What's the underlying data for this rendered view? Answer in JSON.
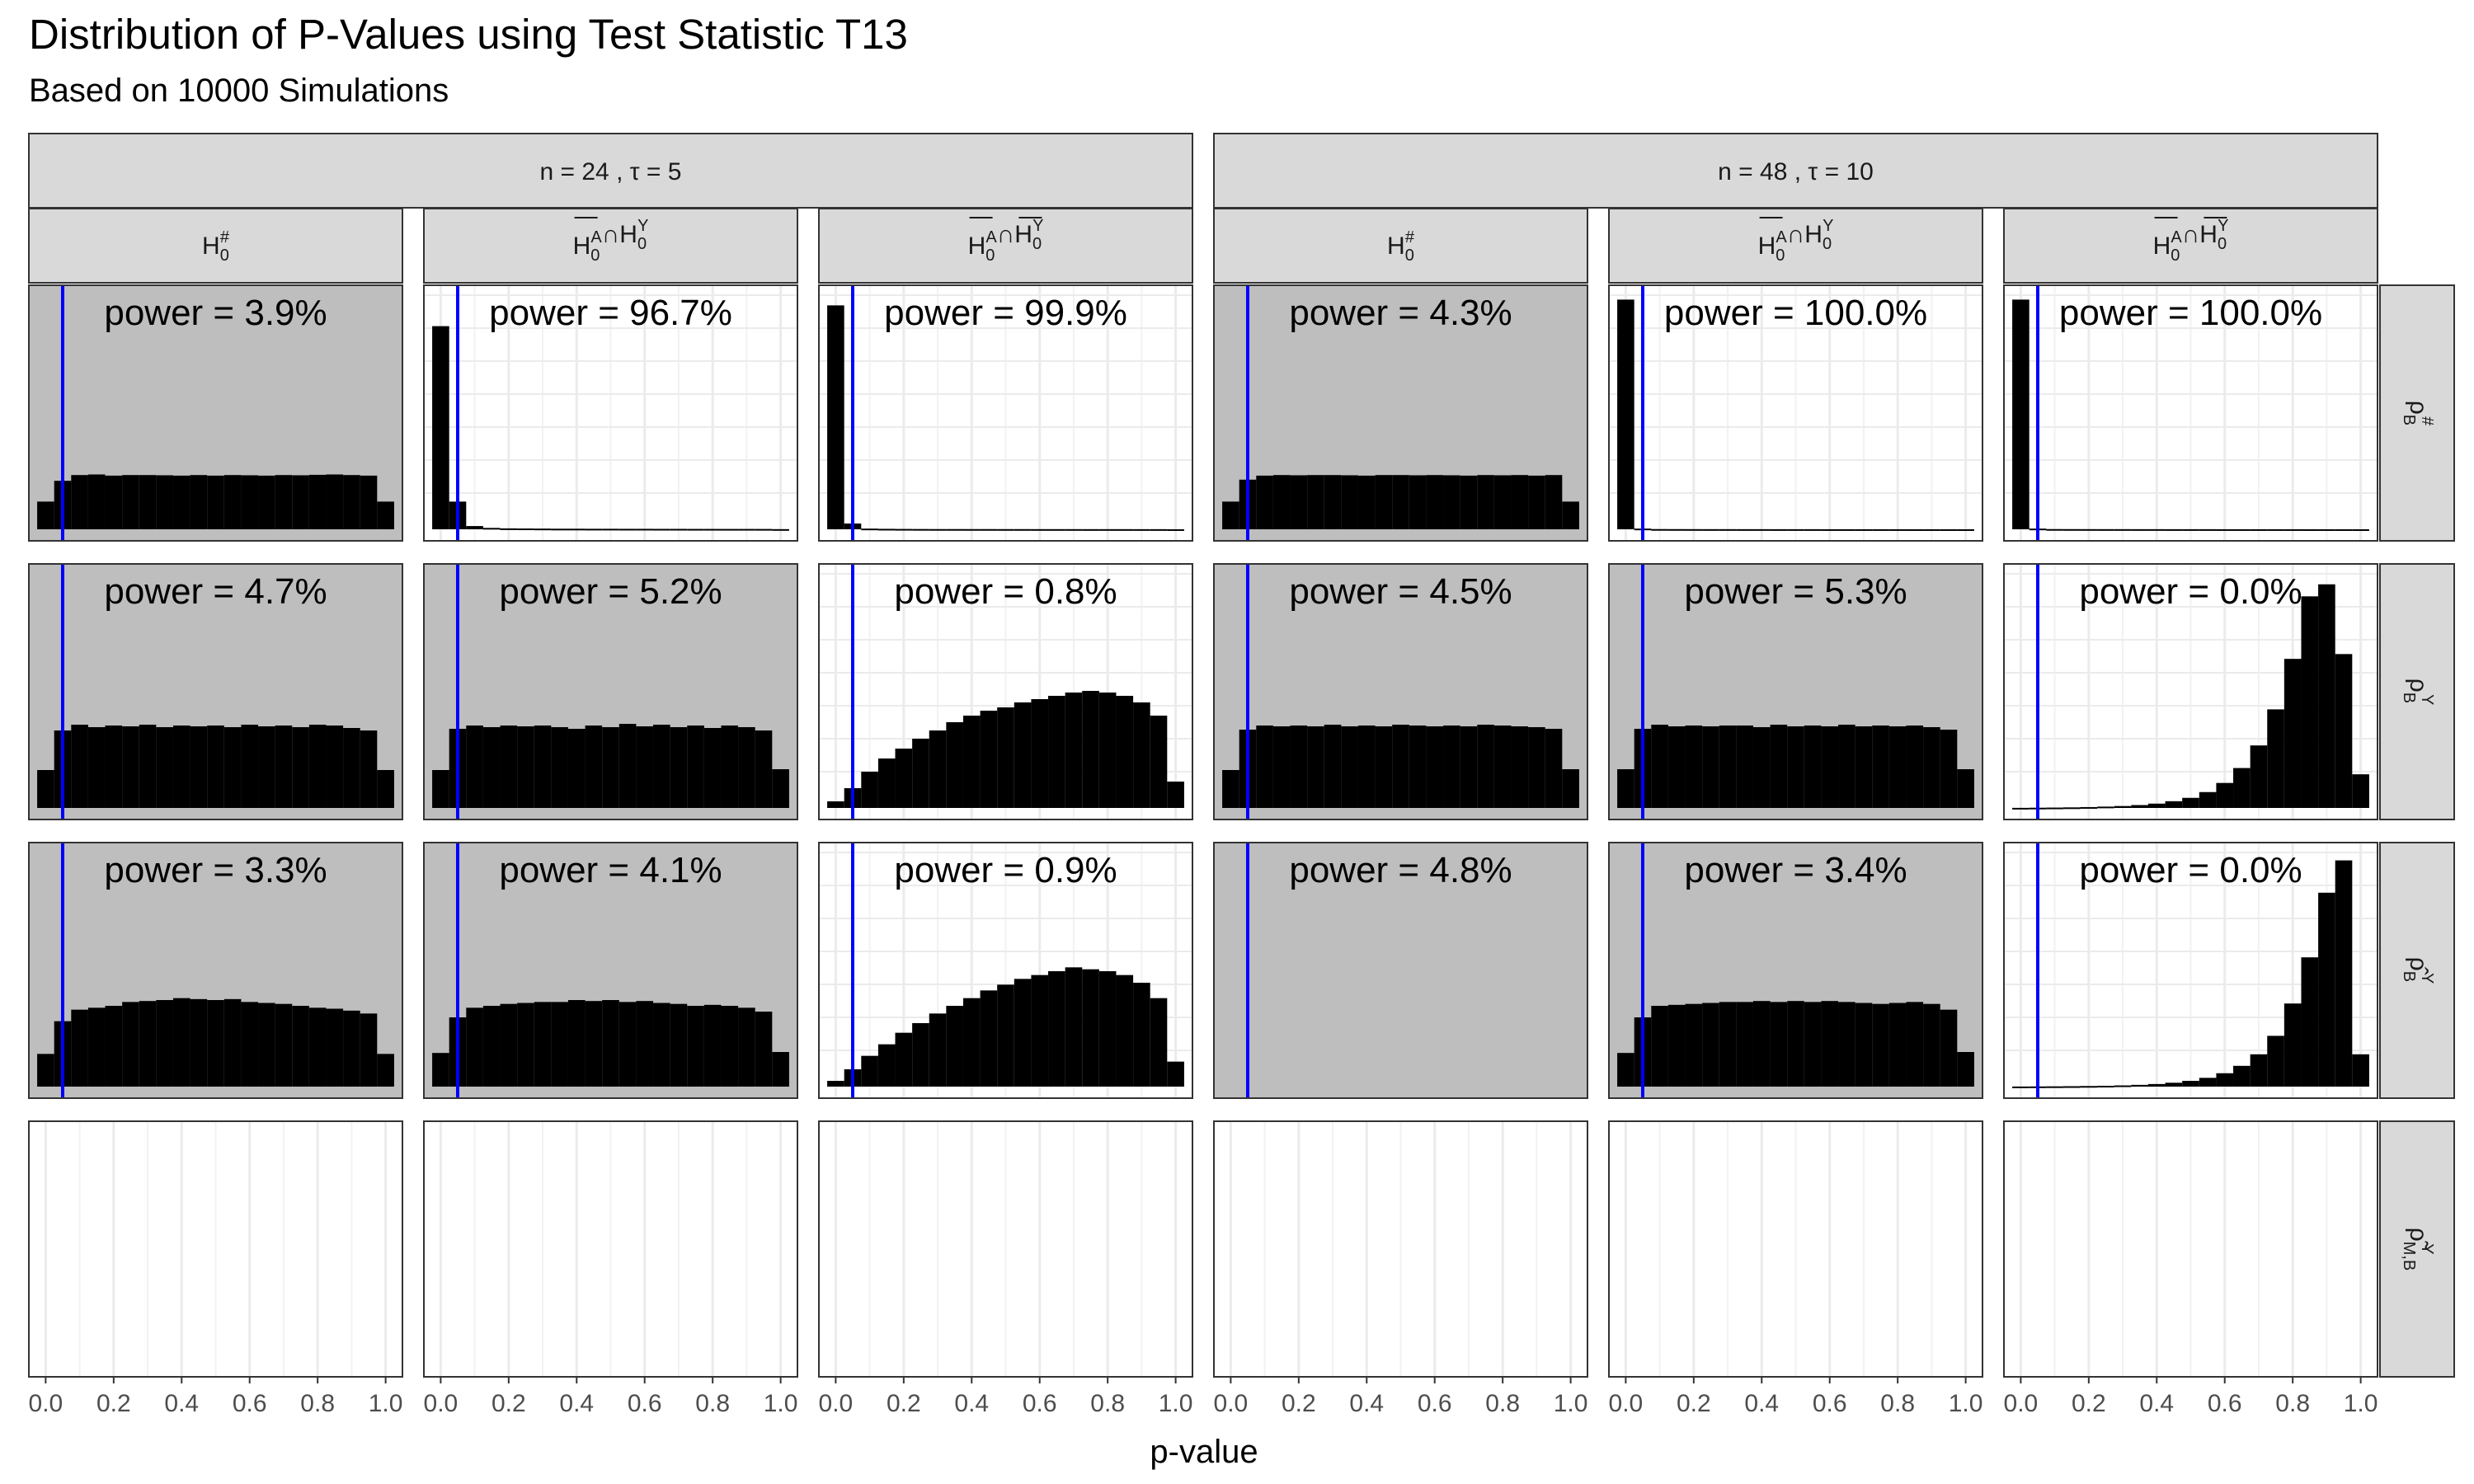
{
  "title": "Distribution of P-Values using Test Statistic T13",
  "subtitle": "Based on 10000 Simulations",
  "chart_data": {
    "type": "histogram-facet-grid",
    "xlabel": "p-value",
    "xlim": [
      0,
      1
    ],
    "x_ticks": [
      "0.0",
      "0.2",
      "0.4",
      "0.6",
      "0.8",
      "1.0"
    ],
    "bins": 21,
    "bin_width": 0.05,
    "bin_centers": [
      0.0,
      0.05,
      0.1,
      0.15,
      0.2,
      0.25,
      0.3,
      0.35,
      0.4,
      0.45,
      0.5,
      0.55,
      0.6,
      0.65,
      0.7,
      0.75,
      0.8,
      0.85,
      0.9,
      0.95,
      1.0
    ],
    "significance_line": 0.05,
    "significance_line_color": "#0000ff",
    "bar_color": "#000000",
    "null_panel_background": "#bebebe",
    "strip_background": "#d9d9d9",
    "column_groups": [
      {
        "label": "n = 24 , τ = 5"
      },
      {
        "label": "n = 48 , τ = 10"
      }
    ],
    "column_hypotheses": [
      "H0#",
      "H̄0A∩H0Y",
      "H̄0A∩H̄0Y"
    ],
    "rows": [
      {
        "label": "ρB#"
      },
      {
        "label": "ρBY"
      },
      {
        "label": "ρ̂BY"
      },
      {
        "label": "ρ̃M,BY"
      }
    ],
    "panels": [
      [
        {
          "power": "power = 3.9%",
          "null": true,
          "ymax": 2000,
          "counts": [
            240,
            420,
            470,
            475,
            465,
            470,
            470,
            468,
            465,
            470,
            465,
            470,
            468,
            465,
            470,
            468,
            472,
            475,
            470,
            465,
            240
          ]
        },
        {
          "power": "power = 96.7%",
          "null": false,
          "ymax": 10000,
          "counts": [
            8800,
            1200,
            140,
            60,
            40,
            35,
            30,
            25,
            25,
            22,
            22,
            20,
            20,
            18,
            18,
            16,
            16,
            15,
            15,
            14,
            7
          ]
        },
        {
          "power": "power = 99.9%",
          "null": false,
          "ymax": 10000,
          "counts": [
            9700,
            250,
            30,
            20,
            15,
            12,
            10,
            10,
            9,
            9,
            8,
            8,
            7,
            7,
            7,
            6,
            6,
            6,
            5,
            5,
            2
          ]
        },
        {
          "power": "power = 4.3%",
          "null": true,
          "ymax": 2000,
          "counts": [
            240,
            430,
            465,
            470,
            468,
            470,
            470,
            468,
            465,
            470,
            470,
            468,
            470,
            468,
            465,
            470,
            468,
            470,
            465,
            470,
            240
          ]
        },
        {
          "power": "power = 100.0%",
          "null": false,
          "ymax": 10000,
          "counts": [
            9950,
            30,
            10,
            8,
            7,
            6,
            6,
            5,
            5,
            4,
            4,
            4,
            3,
            3,
            3,
            3,
            3,
            2,
            2,
            2,
            1
          ]
        },
        {
          "power": "power = 100.0%",
          "null": false,
          "ymax": 10000,
          "counts": [
            9950,
            30,
            10,
            8,
            7,
            6,
            6,
            5,
            5,
            4,
            4,
            4,
            3,
            3,
            3,
            3,
            3,
            2,
            2,
            2,
            1
          ]
        }
      ],
      [
        {
          "power": "power = 4.7%",
          "null": true,
          "ymax": 1400,
          "counts": [
            230,
            470,
            505,
            490,
            500,
            495,
            505,
            490,
            500,
            495,
            500,
            490,
            505,
            495,
            500,
            490,
            505,
            500,
            485,
            470,
            230
          ]
        },
        {
          "power": "power = 5.2%",
          "null": true,
          "ymax": 1400,
          "counts": [
            230,
            480,
            500,
            490,
            500,
            495,
            500,
            490,
            480,
            500,
            490,
            510,
            495,
            505,
            490,
            500,
            485,
            500,
            490,
            470,
            235
          ]
        },
        {
          "power": "power = 0.8%",
          "null": false,
          "ymax": 1400,
          "counts": [
            40,
            120,
            220,
            300,
            360,
            420,
            470,
            520,
            560,
            590,
            610,
            640,
            660,
            680,
            700,
            710,
            700,
            680,
            640,
            560,
            160
          ]
        },
        {
          "power": "power = 4.5%",
          "null": true,
          "ymax": 1400,
          "counts": [
            230,
            475,
            500,
            495,
            500,
            495,
            505,
            495,
            500,
            495,
            505,
            500,
            495,
            500,
            495,
            505,
            500,
            495,
            490,
            480,
            235
          ]
        },
        {
          "power": "power = 5.3%",
          "null": true,
          "ymax": 1400,
          "counts": [
            235,
            480,
            505,
            495,
            500,
            495,
            500,
            500,
            490,
            505,
            495,
            500,
            495,
            505,
            495,
            500,
            495,
            500,
            490,
            475,
            235
          ]
        },
        {
          "power": "power = 0.0%",
          "null": false,
          "ymax": 4800,
          "counts": [
            2,
            5,
            8,
            12,
            18,
            28,
            40,
            60,
            90,
            140,
            210,
            330,
            520,
            830,
            1300,
            2050,
            3100,
            4400,
            4650,
            3200,
            700
          ]
        }
      ],
      [
        {
          "power": "power = 3.3%",
          "null": true,
          "ymax": 1200,
          "counts": [
            170,
            340,
            400,
            410,
            420,
            440,
            445,
            450,
            460,
            455,
            450,
            455,
            440,
            435,
            430,
            420,
            410,
            405,
            395,
            380,
            170
          ]
        },
        {
          "power": "power = 4.1%",
          "null": true,
          "ymax": 1200,
          "counts": [
            175,
            360,
            410,
            420,
            430,
            435,
            440,
            440,
            450,
            445,
            450,
            440,
            445,
            435,
            430,
            420,
            425,
            420,
            410,
            390,
            180
          ]
        },
        {
          "power": "power = 0.9%",
          "null": false,
          "ymax": 1200,
          "counts": [
            30,
            90,
            160,
            220,
            280,
            330,
            380,
            420,
            460,
            500,
            530,
            560,
            580,
            600,
            620,
            610,
            600,
            580,
            540,
            460,
            130
          ]
        },
        {
          "power": "power = 4.8%",
          "null": true,
          "ymax": 1200,
          "counts": [
            0,
            0,
            0,
            0,
            0,
            0,
            0,
            0,
            0,
            0,
            0,
            0,
            0,
            0,
            0,
            0,
            0,
            0,
            0,
            0,
            0
          ]
        },
        {
          "power": "power = 3.4%",
          "null": true,
          "ymax": 1200,
          "counts": [
            175,
            360,
            420,
            425,
            430,
            435,
            440,
            440,
            445,
            440,
            445,
            440,
            445,
            440,
            435,
            430,
            435,
            440,
            430,
            400,
            180
          ]
        },
        {
          "power": "power = 0.0%",
          "null": false,
          "ymax": 5000,
          "counts": [
            2,
            4,
            6,
            9,
            13,
            18,
            26,
            38,
            56,
            84,
            125,
            190,
            290,
            450,
            700,
            1100,
            1800,
            2800,
            4200,
            4900,
            700
          ]
        }
      ],
      [
        {
          "power": "",
          "null": false,
          "ymax": 1000,
          "counts": []
        },
        {
          "power": "",
          "null": false,
          "ymax": 1000,
          "counts": []
        },
        {
          "power": "",
          "null": false,
          "ymax": 1000,
          "counts": []
        },
        {
          "power": "",
          "null": false,
          "ymax": 1000,
          "counts": []
        },
        {
          "power": "",
          "null": false,
          "ymax": 1000,
          "counts": []
        },
        {
          "power": "",
          "null": false,
          "ymax": 1000,
          "counts": []
        }
      ]
    ]
  }
}
